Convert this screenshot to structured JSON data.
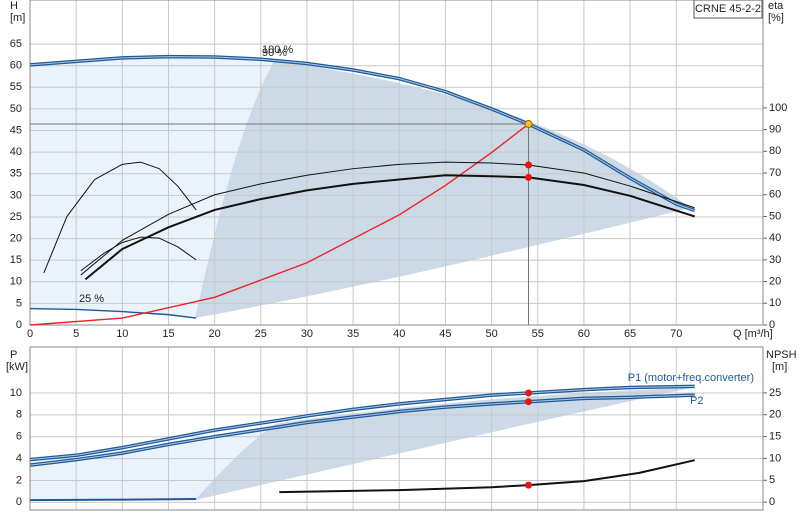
{
  "chart_data": [
    {
      "type": "line",
      "title": "CRNE 45-2-2",
      "ylabel": "H",
      "ylabel_unit": "[m]",
      "y2label": "eta",
      "y2label_unit": "[%]",
      "xlabel": "Q [m³/h]",
      "xlim": [
        0,
        79.4
      ],
      "ylim": [
        0,
        75.2
      ],
      "y2lim": [
        0,
        149.7
      ],
      "xticks": [
        0,
        5,
        10,
        15,
        20,
        25,
        30,
        35,
        40,
        45,
        50,
        55,
        60,
        65,
        70
      ],
      "yticks": [
        0,
        5,
        10,
        15,
        20,
        25,
        30,
        35,
        40,
        45,
        50,
        55,
        60,
        65
      ],
      "y2ticks": [
        0,
        10,
        20,
        30,
        40,
        50,
        60,
        70,
        80,
        90,
        100
      ],
      "grid": true,
      "show_xtick_labels": true,
      "series": [
        {
          "color": "#1f5a96",
          "style": "double",
          "x": [
            0,
            5,
            10,
            15,
            20,
            25,
            30,
            35,
            40,
            45,
            50,
            54,
            60,
            65,
            70,
            72
          ],
          "values": [
            60.2,
            61,
            61.8,
            62.1,
            62,
            61.5,
            60.5,
            59,
            57,
            54,
            50,
            46.5,
            40.5,
            34,
            28,
            26.5
          ]
        },
        {
          "color": "#1f5a96",
          "style": "single",
          "x": [
            0,
            5,
            10,
            15,
            18
          ],
          "values": [
            3.8,
            3.6,
            3.1,
            2.4,
            1.6
          ]
        },
        {
          "color": "#ee2222",
          "style": "single",
          "x": [
            0,
            10,
            20,
            30,
            40,
            45,
            50,
            54
          ],
          "values": [
            0,
            1.6,
            6.4,
            14.4,
            25.5,
            32.3,
            39.9,
            46.5
          ]
        },
        {
          "color": "#111111",
          "style": "thin",
          "axis": "y2",
          "x": [
            5.5,
            10,
            15,
            20,
            25,
            30,
            35,
            40,
            45,
            50,
            54,
            60,
            65,
            72
          ],
          "values": [
            23,
            39,
            51,
            60,
            65,
            69,
            72,
            74,
            75,
            74.6,
            73.7,
            70,
            64,
            54
          ]
        },
        {
          "color": "#111111",
          "style": "thick",
          "axis": "y2",
          "x": [
            6,
            10,
            15,
            20,
            25,
            30,
            35,
            40,
            45,
            50,
            54,
            60,
            65,
            72
          ],
          "values": [
            21,
            35,
            45,
            53,
            58,
            62,
            65,
            67,
            69,
            68.5,
            68,
            64.5,
            59.5,
            50
          ]
        },
        {
          "color": "#111111",
          "style": "thin",
          "axis": "y2",
          "x": [
            1.5,
            4,
            7,
            10,
            12,
            14,
            16,
            18
          ],
          "values": [
            24,
            50,
            67,
            74,
            75,
            72,
            64,
            53
          ]
        },
        {
          "color": "#111111",
          "style": "thin",
          "axis": "y2",
          "x": [
            5.5,
            8,
            10,
            12,
            14,
            16,
            18
          ],
          "values": [
            25,
            33,
            38,
            40.5,
            40,
            36,
            30
          ]
        }
      ],
      "markers": [
        {
          "x": 54,
          "y": 46.5,
          "color": "#f5c518"
        },
        {
          "x": 54,
          "y": 73.7,
          "axis": "y2",
          "color": "#ee1111"
        },
        {
          "x": 54,
          "y": 68,
          "axis": "y2",
          "color": "#ee1111"
        }
      ],
      "reference_lines": {
        "x": 54,
        "y": 46.5
      },
      "annotations": [
        "100 %",
        "90 %",
        "25 %"
      ]
    },
    {
      "type": "line",
      "ylabel": "P",
      "ylabel_unit": "[kW]",
      "y2label": "NPSH",
      "y2label_unit": "[m]",
      "xlim": [
        0,
        79.4
      ],
      "ylim": [
        -0.7,
        14.2
      ],
      "y2lim": [
        -1.8,
        35.5
      ],
      "xticks": [
        0,
        5,
        10,
        15,
        20,
        25,
        30,
        35,
        40,
        45,
        50,
        55,
        60,
        65,
        70
      ],
      "yticks": [
        0,
        2,
        4,
        6,
        8,
        10
      ],
      "y2ticks": [
        0,
        5,
        10,
        15,
        20,
        25
      ],
      "grid": true,
      "show_xtick_labels": false,
      "series": [
        {
          "name": "P1 (motor+freq.converter)",
          "color": "#1f5a96",
          "style": "double",
          "x": [
            0,
            5,
            10,
            15,
            20,
            27,
            30,
            35,
            40,
            45,
            50,
            54,
            60,
            65,
            72
          ],
          "values": [
            3.9,
            4.3,
            5,
            5.8,
            6.6,
            7.5,
            7.9,
            8.5,
            9,
            9.4,
            9.8,
            10,
            10.3,
            10.5,
            10.6
          ]
        },
        {
          "name": "P2",
          "color": "#1f5a96",
          "style": "double",
          "x": [
            0,
            5,
            10,
            15,
            20,
            27,
            30,
            35,
            40,
            45,
            50,
            54,
            60,
            65,
            72
          ],
          "values": [
            3.4,
            3.9,
            4.5,
            5.3,
            6,
            6.9,
            7.3,
            7.8,
            8.3,
            8.7,
            9,
            9.2,
            9.5,
            9.6,
            9.8
          ]
        },
        {
          "color": "#1f5a96",
          "style": "thick",
          "x": [
            0,
            10,
            18
          ],
          "values": [
            0.2,
            0.25,
            0.3
          ]
        },
        {
          "color": "#111111",
          "style": "thick",
          "axis": "y2",
          "x": [
            27,
            40,
            50,
            54,
            60,
            66,
            72
          ],
          "values": [
            2.3,
            2.75,
            3.4,
            3.9,
            4.8,
            6.7,
            9.6
          ]
        }
      ],
      "markers": [
        {
          "x": 54,
          "y": 10,
          "color": "#ee1111"
        },
        {
          "x": 54,
          "y": 9.2,
          "color": "#ee1111"
        },
        {
          "x": 54,
          "y": 3.9,
          "axis": "y2",
          "color": "#ee1111"
        }
      ]
    }
  ]
}
